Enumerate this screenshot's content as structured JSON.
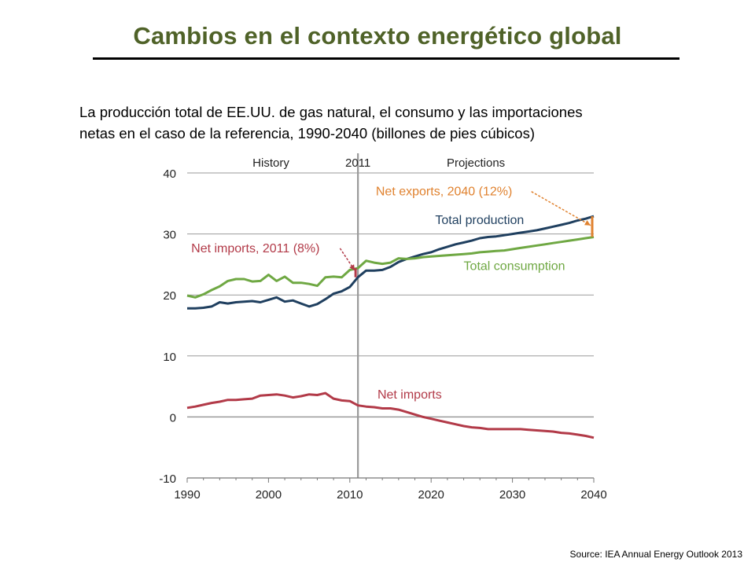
{
  "slide": {
    "title": "Cambios en el contexto energético global",
    "subtitle_line1": "La producción total de EE.UU. de gas natural, el consumo y las importaciones",
    "subtitle_line2": "netas en el caso de la referencia, 1990-2040 (billones de pies cúbicos)",
    "source": "Source: IEA Annual Energy Outlook 2013"
  },
  "chart_data": {
    "type": "line",
    "title": "",
    "xlabel": "",
    "ylabel": "",
    "xlim": [
      1990,
      2040
    ],
    "ylim": [
      -10,
      40
    ],
    "x_ticks": [
      1990,
      2000,
      2010,
      2020,
      2030,
      2040
    ],
    "y_ticks": [
      -10,
      0,
      10,
      20,
      30,
      40
    ],
    "grid": "horizontal",
    "divider_year": 2011,
    "region_labels": {
      "history": "History",
      "divider": "2011",
      "projections": "Projections"
    },
    "colors": {
      "production": "#1f3f5f",
      "consumption": "#6fa843",
      "imports": "#b23a48",
      "label_orange": "#e0822f",
      "grid": "#9a9a9a"
    },
    "series": [
      {
        "name": "Total production",
        "key": "production",
        "x": [
          1990,
          1991,
          1992,
          1993,
          1994,
          1995,
          1996,
          1997,
          1998,
          1999,
          2000,
          2001,
          2002,
          2003,
          2004,
          2005,
          2006,
          2007,
          2008,
          2009,
          2010,
          2011,
          2012,
          2013,
          2014,
          2015,
          2016,
          2017,
          2018,
          2019,
          2020,
          2021,
          2022,
          2023,
          2024,
          2025,
          2026,
          2027,
          2028,
          2029,
          2030,
          2031,
          2032,
          2033,
          2034,
          2035,
          2036,
          2037,
          2038,
          2039,
          2040
        ],
        "values": [
          17.8,
          17.8,
          17.9,
          18.1,
          18.8,
          18.6,
          18.8,
          18.9,
          19.0,
          18.8,
          19.2,
          19.6,
          18.9,
          19.1,
          18.6,
          18.1,
          18.5,
          19.3,
          20.2,
          20.6,
          21.3,
          22.9,
          24.0,
          24.0,
          24.1,
          24.6,
          25.4,
          25.9,
          26.3,
          26.7,
          27.0,
          27.5,
          27.9,
          28.3,
          28.6,
          28.9,
          29.3,
          29.5,
          29.6,
          29.8,
          30.0,
          30.2,
          30.4,
          30.6,
          30.9,
          31.2,
          31.5,
          31.8,
          32.2,
          32.5,
          32.9
        ]
      },
      {
        "name": "Total consumption",
        "key": "consumption",
        "x": [
          1990,
          1991,
          1992,
          1993,
          1994,
          1995,
          1996,
          1997,
          1998,
          1999,
          2000,
          2001,
          2002,
          2003,
          2004,
          2005,
          2006,
          2007,
          2008,
          2009,
          2010,
          2011,
          2012,
          2013,
          2014,
          2015,
          2016,
          2017,
          2018,
          2019,
          2020,
          2021,
          2022,
          2023,
          2024,
          2025,
          2026,
          2027,
          2028,
          2029,
          2030,
          2031,
          2032,
          2033,
          2034,
          2035,
          2036,
          2037,
          2038,
          2039,
          2040
        ],
        "values": [
          19.9,
          19.6,
          20.1,
          20.8,
          21.4,
          22.3,
          22.6,
          22.6,
          22.2,
          22.3,
          23.3,
          22.3,
          23.0,
          22.0,
          22.0,
          21.8,
          21.5,
          22.9,
          23.0,
          22.9,
          24.1,
          24.4,
          25.6,
          25.3,
          25.1,
          25.3,
          26.0,
          25.9,
          26.0,
          26.2,
          26.3,
          26.4,
          26.5,
          26.6,
          26.7,
          26.8,
          27.0,
          27.1,
          27.2,
          27.3,
          27.5,
          27.7,
          27.9,
          28.1,
          28.3,
          28.5,
          28.7,
          28.9,
          29.1,
          29.3,
          29.5
        ]
      },
      {
        "name": "Net imports",
        "key": "imports",
        "x": [
          1990,
          1991,
          1992,
          1993,
          1994,
          1995,
          1996,
          1997,
          1998,
          1999,
          2000,
          2001,
          2002,
          2003,
          2004,
          2005,
          2006,
          2007,
          2008,
          2009,
          2010,
          2011,
          2012,
          2013,
          2014,
          2015,
          2016,
          2017,
          2018,
          2019,
          2020,
          2021,
          2022,
          2023,
          2024,
          2025,
          2026,
          2027,
          2028,
          2029,
          2030,
          2031,
          2032,
          2033,
          2034,
          2035,
          2036,
          2037,
          2038,
          2039,
          2040
        ],
        "values": [
          1.5,
          1.7,
          2.0,
          2.3,
          2.5,
          2.8,
          2.8,
          2.9,
          3.0,
          3.5,
          3.6,
          3.7,
          3.5,
          3.2,
          3.4,
          3.7,
          3.6,
          3.9,
          3.0,
          2.7,
          2.6,
          1.9,
          1.7,
          1.6,
          1.4,
          1.4,
          1.2,
          0.8,
          0.4,
          0.0,
          -0.3,
          -0.6,
          -0.9,
          -1.2,
          -1.5,
          -1.7,
          -1.8,
          -2.0,
          -2.0,
          -2.0,
          -2.0,
          -2.0,
          -2.1,
          -2.2,
          -2.3,
          -2.4,
          -2.6,
          -2.7,
          -2.9,
          -3.1,
          -3.4
        ]
      }
    ],
    "annotations": [
      {
        "text": "Total production",
        "series": "production",
        "x": 2020.5,
        "y": 31.6
      },
      {
        "text": "Total consumption",
        "series": "consumption",
        "x": 2024,
        "y": 24.1
      },
      {
        "text": "Net imports",
        "series": "imports",
        "x": 2013.4,
        "y": 3.0
      },
      {
        "text": "Net imports, 2011 (8%)",
        "series": "imports_callout",
        "x": 1990.5,
        "y": 27.0,
        "arrow_to": [
          2011,
          24.0
        ]
      },
      {
        "text": "Net exports, 2040 (12%)",
        "series": "exports_callout",
        "x": 2013.2,
        "y": 36.3,
        "arrow_to": [
          2040,
          31.4
        ]
      }
    ]
  }
}
